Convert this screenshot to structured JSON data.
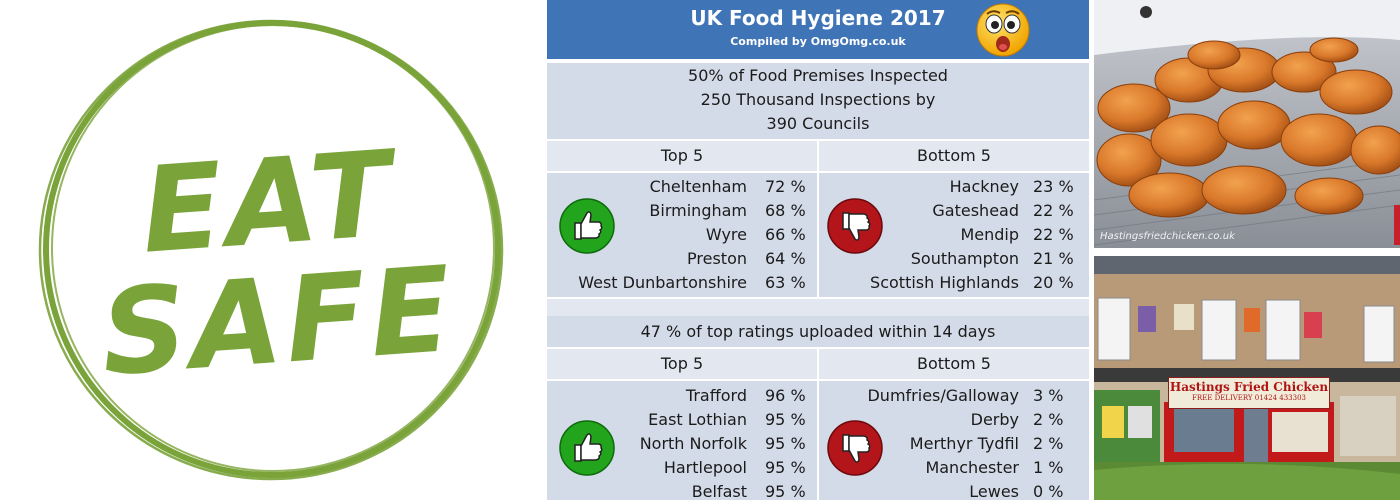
{
  "logo": {
    "line1": "EAT",
    "line2": "SAFE",
    "color": "#7aa33a"
  },
  "header": {
    "title": "UK Food Hygiene 2017",
    "subtitle": "Compiled by OmgOmg.co.uk",
    "emoji": "shocked-face"
  },
  "section1": {
    "summary": [
      "50% of Food Premises Inspected",
      "250 Thousand Inspections by",
      "390 Councils"
    ],
    "top_label": "Top 5",
    "bottom_label": "Bottom 5",
    "top": [
      {
        "name": "Cheltenham",
        "pct": "72 %"
      },
      {
        "name": "Birmingham",
        "pct": "68 %"
      },
      {
        "name": "Wyre",
        "pct": "66 %"
      },
      {
        "name": "Preston",
        "pct": "64 %"
      },
      {
        "name": "West Dunbartonshire",
        "pct": "63 %"
      }
    ],
    "bottom": [
      {
        "name": "Hackney",
        "pct": "23 %"
      },
      {
        "name": "Gateshead",
        "pct": "22 %"
      },
      {
        "name": "Mendip",
        "pct": "22 %"
      },
      {
        "name": "Southampton",
        "pct": "21 %"
      },
      {
        "name": "Scottish Highlands",
        "pct": "20 %"
      }
    ]
  },
  "section2": {
    "summary": "47 % of top ratings uploaded within 14 days",
    "top_label": "Top 5",
    "bottom_label": "Bottom 5",
    "top": [
      {
        "name": "Trafford",
        "pct": "96 %"
      },
      {
        "name": "East Lothian",
        "pct": "95 %"
      },
      {
        "name": "North Norfolk",
        "pct": "95 %"
      },
      {
        "name": "Hartlepool",
        "pct": "95 %"
      },
      {
        "name": "Belfast",
        "pct": "95 %"
      }
    ],
    "bottom": [
      {
        "name": "Dumfries/Galloway",
        "pct": "3 %"
      },
      {
        "name": "Derby",
        "pct": "2 %"
      },
      {
        "name": "Merthyr Tydfil",
        "pct": "2 %"
      },
      {
        "name": "Manchester",
        "pct": "1 %"
      },
      {
        "name": "Lewes",
        "pct": "0 %"
      }
    ]
  },
  "photos": {
    "top_watermark": "Hastingsfriedchicken.co.uk",
    "shop_sign": "Hastings Fried Chicken",
    "shop_sub": "FREE DELIVERY 01424 433303"
  },
  "colors": {
    "header_blue": "#3f74b7",
    "band": "#d3dbe8",
    "band_light": "#e3e8f0",
    "thumb_up": "#22a51c",
    "thumb_down": "#b3151b"
  }
}
